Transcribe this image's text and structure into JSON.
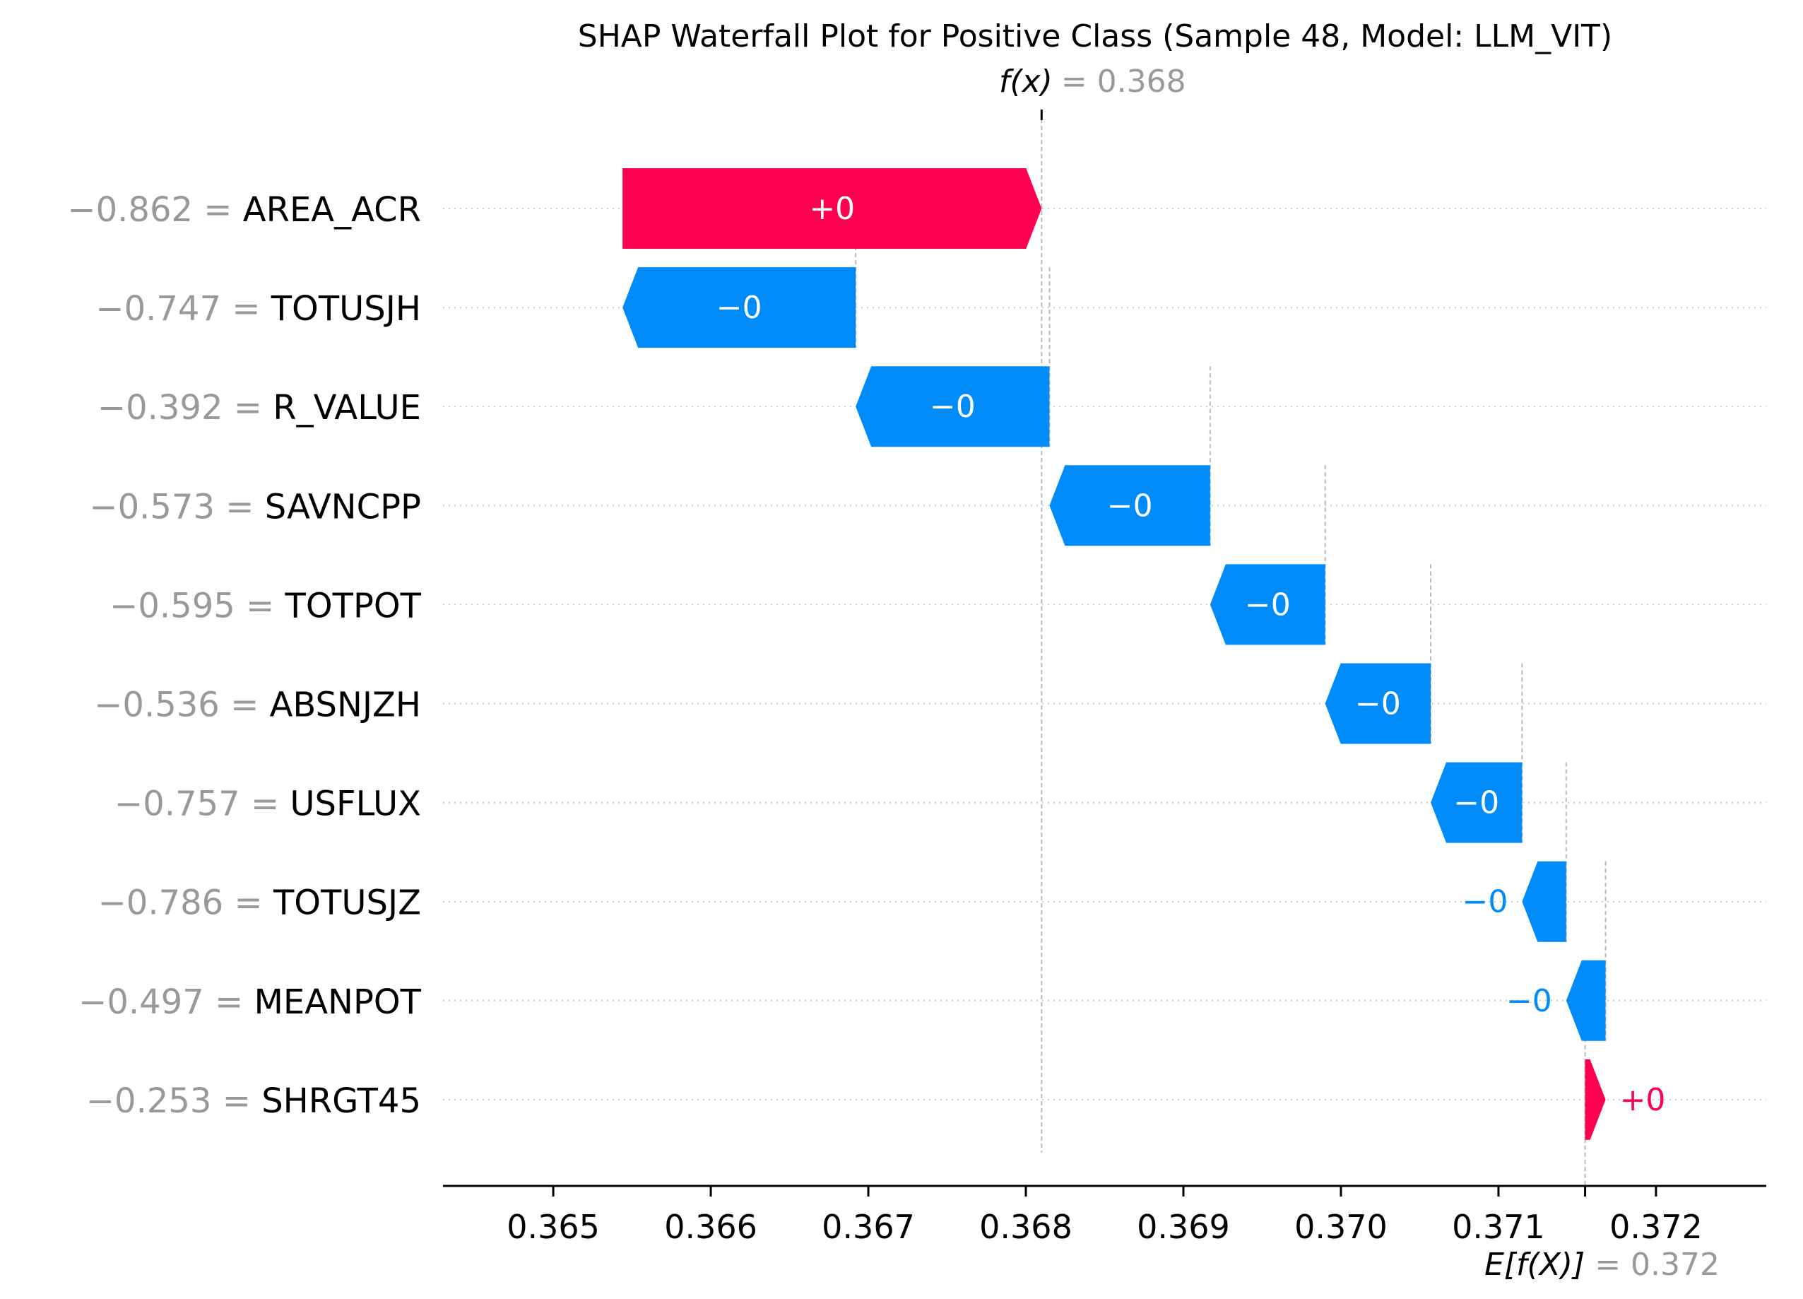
{
  "chart_data": {
    "type": "waterfall",
    "title": "SHAP Waterfall Plot for Positive Class (Sample 48, Model: LLM_VIT)",
    "fx": {
      "label": "f(x)",
      "equals": "= 0.368",
      "value": 0.3681
    },
    "base": {
      "label": "E[f(X)]",
      "equals": "= 0.372",
      "value": 0.37155
    },
    "xlim": [
      0.3643,
      0.3727
    ],
    "xticks": [
      0.365,
      0.366,
      0.367,
      0.368,
      0.369,
      0.37,
      0.371,
      0.372
    ],
    "xtick_labels": [
      "0.365",
      "0.366",
      "0.367",
      "0.368",
      "0.369",
      "0.370",
      "0.371",
      "0.372"
    ],
    "features": [
      {
        "name": "AREA_ACR",
        "feature_value": "−0.862",
        "start": 0.36544,
        "end": 0.3681,
        "label": "+0",
        "label_inside": true
      },
      {
        "name": "TOTUSJH",
        "feature_value": "−0.747",
        "start": 0.36692,
        "end": 0.36544,
        "label": "−0",
        "label_inside": true
      },
      {
        "name": "R_VALUE",
        "feature_value": "−0.392",
        "start": 0.36815,
        "end": 0.36692,
        "label": "−0",
        "label_inside": true
      },
      {
        "name": "SAVNCPP",
        "feature_value": "−0.573",
        "start": 0.36917,
        "end": 0.36815,
        "label": "−0",
        "label_inside": true
      },
      {
        "name": "TOTPOT",
        "feature_value": "−0.595",
        "start": 0.3699,
        "end": 0.36917,
        "label": "−0",
        "label_inside": true
      },
      {
        "name": "ABSNJZH",
        "feature_value": "−0.536",
        "start": 0.37057,
        "end": 0.3699,
        "label": "−0",
        "label_inside": true
      },
      {
        "name": "USFLUX",
        "feature_value": "−0.757",
        "start": 0.37115,
        "end": 0.37057,
        "label": "−0",
        "label_inside": true
      },
      {
        "name": "TOTUSJZ",
        "feature_value": "−0.786",
        "start": 0.37143,
        "end": 0.37115,
        "label": "−0",
        "label_inside": false
      },
      {
        "name": "MEANPOT",
        "feature_value": "−0.497",
        "start": 0.37168,
        "end": 0.37143,
        "label": "−0",
        "label_inside": false
      },
      {
        "name": "SHRGT45",
        "feature_value": "−0.253",
        "start": 0.37155,
        "end": 0.37168,
        "label": "+0",
        "label_inside": false
      }
    ],
    "colors": {
      "positive": "#ff0051",
      "negative": "#008bfb",
      "feature_value_text": "#999999",
      "text": "#000000",
      "grid": "#cccccc"
    }
  }
}
